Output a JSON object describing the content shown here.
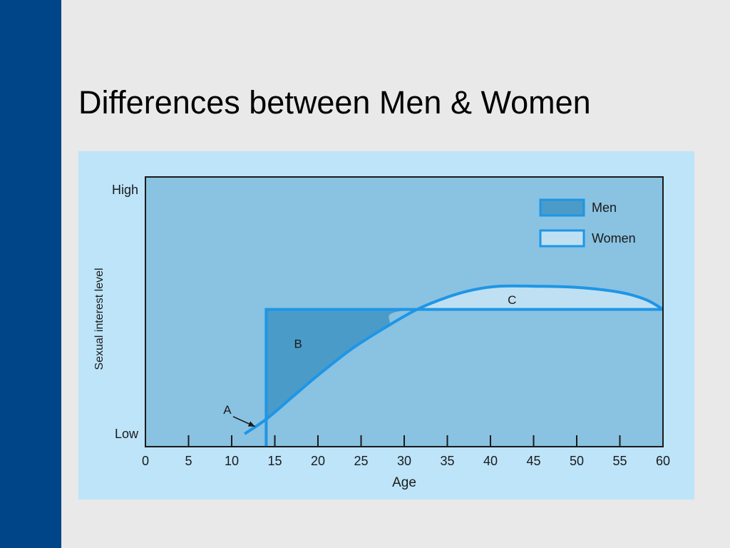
{
  "slide": {
    "title": "Differences between Men & Women"
  },
  "colors": {
    "sidebar": "#004587",
    "background": "#e9e9e9",
    "panel": "#bde4f9",
    "plot_area": "#8ac2e1",
    "area_B": "#4b9bc8",
    "area_C": "#bfe0f2",
    "line": "#1e96e6",
    "legend_men_fill": "#4b9bc8",
    "legend_women_fill": "#bfe0f2"
  },
  "chart_data": {
    "type": "line",
    "title": "",
    "xlabel": "Age",
    "ylabel": "Sexual interest level",
    "xlim": [
      0,
      60
    ],
    "ylim": [
      0,
      1
    ],
    "x_ticks": [
      0,
      5,
      10,
      15,
      20,
      25,
      30,
      35,
      40,
      45,
      50,
      55,
      60
    ],
    "y_ticks": [
      {
        "value": 0.0,
        "label": "Low"
      },
      {
        "value": 1.0,
        "label": "High"
      }
    ],
    "legend": {
      "placement": "top-right",
      "entries": [
        "Men",
        "Women"
      ]
    },
    "grid": false,
    "series": [
      {
        "name": "Men",
        "x": [
          14,
          14,
          60
        ],
        "y": [
          0.0,
          0.51,
          0.51
        ]
      },
      {
        "name": "Women",
        "x": [
          11.5,
          14,
          17,
          20,
          24,
          28,
          31.5,
          35,
          38,
          41,
          45,
          50,
          55,
          58,
          60
        ],
        "y": [
          0.0,
          0.06,
          0.15,
          0.24,
          0.35,
          0.44,
          0.51,
          0.56,
          0.59,
          0.605,
          0.605,
          0.6,
          0.58,
          0.55,
          0.51
        ]
      }
    ],
    "annotations": [
      {
        "label": "A",
        "x": 9.5,
        "y": 0.1,
        "arrow_to": [
          12.7,
          0.03
        ]
      },
      {
        "label": "B",
        "x": 17.7,
        "y": 0.37
      },
      {
        "label": "C",
        "x": 42.5,
        "y": 0.55
      }
    ]
  }
}
